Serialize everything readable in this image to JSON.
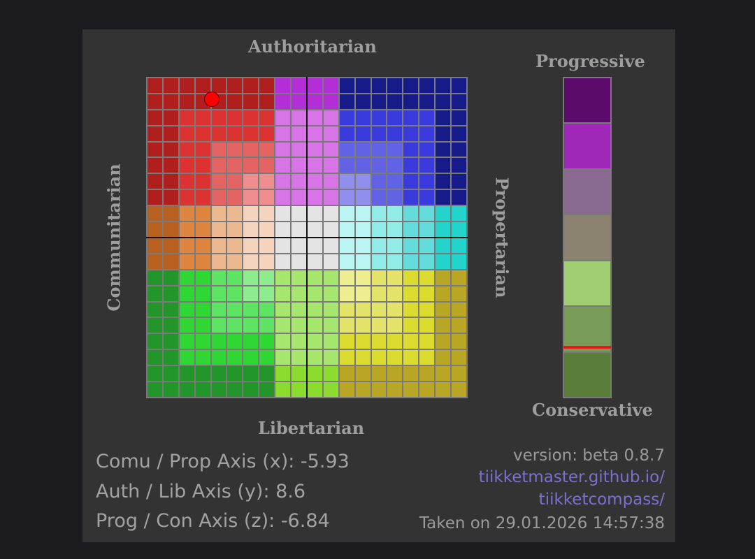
{
  "labels": {
    "top": "Authoritarian",
    "bottom": "Libertarian",
    "left": "Communitarian",
    "right": "Propertarian",
    "z_top": "Progressive",
    "z_bottom": "Conservative"
  },
  "compass": {
    "x_range": [
      -10,
      10
    ],
    "y_range": [
      -10,
      10
    ],
    "grid_size": 20,
    "point": {
      "x": -5.93,
      "y": 8.6
    },
    "marker_color": "#ff0000",
    "colors": {
      "auth_left": [
        "#b01e1e",
        "#dc3232",
        "#e46464",
        "#ee8e8e"
      ],
      "auth_center": [
        "#b42ed8",
        "#d774e6",
        "#e29eee",
        "#eeb8f6"
      ],
      "auth_right": [
        "#161b89",
        "#3a3bdc",
        "#6262e4",
        "#9090ec"
      ],
      "center_left": [
        "#b86020",
        "#de8640",
        "#ecb890",
        "#f4d4bc"
      ],
      "center": [
        "#e4e4e4",
        "#e4e4e4",
        "#e4e4e4",
        "#e4e4e4"
      ],
      "center_right": [
        "#22d4cc",
        "#64dcdc",
        "#92ece8",
        "#bcf6f4"
      ],
      "lib_left": [
        "#22962a",
        "#30d634",
        "#5ce462",
        "#8cec8e"
      ],
      "lib_center": [
        "#8cdc30",
        "#a6e66c",
        "#c2ee94",
        "#d8f4b4"
      ],
      "lib_right": [
        "#b8a624",
        "#dcdc30",
        "#e4e46a",
        "#eeee90"
      ]
    }
  },
  "z_axis": {
    "range": [
      -10,
      10
    ],
    "value": -6.84,
    "segments": [
      "#5a0a6a",
      "#a028b8",
      "#8a6a90",
      "#8c8270",
      "#a0cc72",
      "#789c58",
      "#5a7e3a"
    ]
  },
  "coords": {
    "x_text": "Comu / Prop Axis (x): -5.93",
    "y_text": "Auth / Lib Axis (y): 8.6",
    "z_text": "Prog / Con Axis (z): -6.84"
  },
  "meta": {
    "version": "version: beta 0.8.7",
    "link_line1": "tiikketmaster.github.io/",
    "link_line2": "tiikketcompass/",
    "taken": "Taken on 29.01.2026 14:57:38"
  }
}
